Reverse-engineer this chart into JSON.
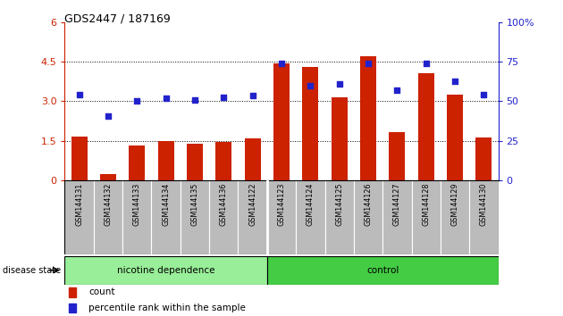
{
  "title": "GDS2447 / 187169",
  "categories": [
    "GSM144131",
    "GSM144132",
    "GSM144133",
    "GSM144134",
    "GSM144135",
    "GSM144136",
    "GSM144122",
    "GSM144123",
    "GSM144124",
    "GSM144125",
    "GSM144126",
    "GSM144127",
    "GSM144128",
    "GSM144129",
    "GSM144130"
  ],
  "bar_values": [
    1.65,
    0.22,
    1.32,
    1.48,
    1.38,
    1.44,
    1.6,
    4.45,
    4.3,
    3.15,
    4.72,
    1.82,
    4.05,
    3.25,
    1.63
  ],
  "dot_values_left": [
    3.25,
    2.45,
    3.0,
    3.1,
    3.03,
    3.15,
    3.2,
    4.45,
    3.6,
    3.65,
    4.45,
    3.4,
    4.45,
    3.75,
    3.25
  ],
  "group1_label": "nicotine dependence",
  "group2_label": "control",
  "group1_count": 7,
  "group2_count": 8,
  "bar_color": "#cc2200",
  "dot_color": "#2222cc",
  "left_ylim": [
    0,
    6
  ],
  "right_ylim": [
    0,
    100
  ],
  "left_yticks": [
    0,
    1.5,
    3.0,
    4.5,
    6
  ],
  "right_yticks": [
    0,
    25,
    50,
    75,
    100
  ],
  "left_ytick_labels": [
    "0",
    "1.5",
    "3.0",
    "4.5",
    "6"
  ],
  "right_ytick_labels": [
    "0",
    "25",
    "50",
    "75",
    "100%"
  ],
  "disease_state_label": "disease state",
  "legend_count": "count",
  "legend_pct": "percentile rank within the sample",
  "group1_color": "#99ee99",
  "group2_color": "#44cc44",
  "tick_bg_color": "#bbbbbb",
  "hline_values": [
    1.5,
    3.0,
    4.5
  ],
  "figsize": [
    6.3,
    3.54
  ],
  "dpi": 100
}
